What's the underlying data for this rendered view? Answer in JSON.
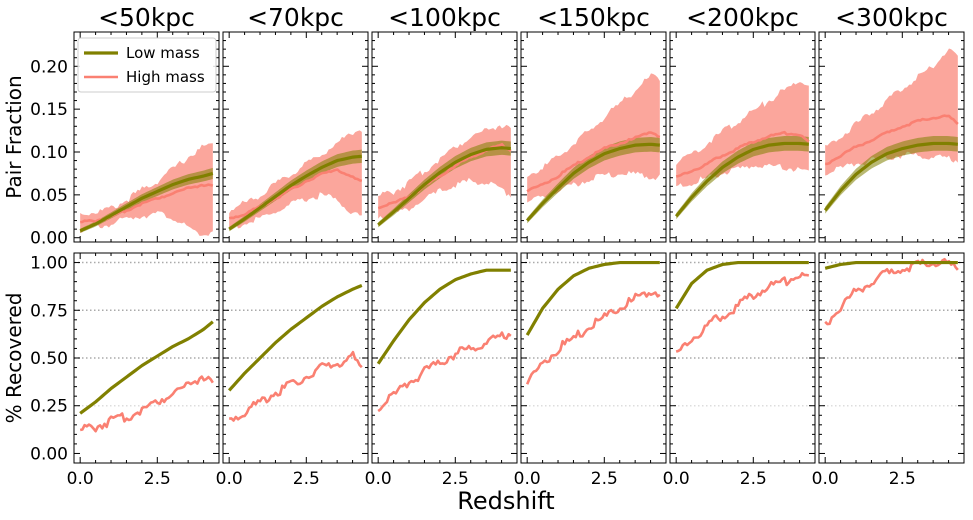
{
  "chart_data": {
    "type": "line",
    "panel_titles": [
      "<50kpc",
      "<70kpc",
      "<100kpc",
      "<150kpc",
      "<200kpc",
      "<300kpc"
    ],
    "xlabel": "Redshift",
    "ylabel_top": "Pair Fraction",
    "ylabel_bottom": "% Recovered",
    "xlim": [
      -0.2,
      4.5
    ],
    "xticks": [
      0.0,
      2.5
    ],
    "xtick_labels": [
      "0.0",
      "2.5"
    ],
    "ylim_top": [
      -0.005,
      0.24
    ],
    "yticks_top": [
      0.0,
      0.05,
      0.1,
      0.15,
      0.2
    ],
    "ytick_labels_top": [
      "0.00",
      "0.05",
      "0.10",
      "0.15",
      "0.20"
    ],
    "ylim_bottom": [
      -0.05,
      1.05
    ],
    "yticks_bottom": [
      0.0,
      0.25,
      0.5,
      0.75,
      1.0
    ],
    "ytick_labels_bottom": [
      "0.00",
      "0.25",
      "0.50",
      "0.75",
      "1.00"
    ],
    "reference_lines_bottom": [
      0.25,
      0.5,
      0.75,
      1.0
    ],
    "legend": {
      "location": "upper-left of first panel",
      "entries": [
        "Low mass",
        "High mass"
      ]
    },
    "colors": {
      "low_mass": "#808000",
      "high_mass": "#fa8072"
    },
    "x": [
      0.0,
      0.5,
      1.0,
      1.5,
      2.0,
      2.5,
      3.0,
      3.5,
      4.0,
      4.3
    ],
    "pair_fraction": [
      {
        "panel": "<50kpc",
        "low_mass": [
          0.008,
          0.016,
          0.026,
          0.036,
          0.046,
          0.054,
          0.062,
          0.068,
          0.072,
          0.075
        ],
        "high_mass": [
          0.018,
          0.02,
          0.024,
          0.032,
          0.04,
          0.046,
          0.052,
          0.058,
          0.062,
          0.06
        ],
        "high_lower": [
          0.01,
          0.012,
          0.016,
          0.022,
          0.026,
          0.028,
          0.024,
          0.01,
          0.003,
          0.008
        ],
        "high_upper": [
          0.028,
          0.03,
          0.034,
          0.044,
          0.056,
          0.066,
          0.08,
          0.094,
          0.106,
          0.108
        ]
      },
      {
        "panel": "<70kpc",
        "low_mass": [
          0.01,
          0.022,
          0.035,
          0.048,
          0.061,
          0.072,
          0.082,
          0.09,
          0.094,
          0.095
        ],
        "high_mass": [
          0.022,
          0.028,
          0.036,
          0.046,
          0.056,
          0.066,
          0.074,
          0.08,
          0.07,
          0.065
        ],
        "high_lower": [
          0.012,
          0.016,
          0.022,
          0.03,
          0.038,
          0.045,
          0.05,
          0.044,
          0.028,
          0.025
        ],
        "high_upper": [
          0.032,
          0.04,
          0.05,
          0.062,
          0.074,
          0.086,
          0.098,
          0.11,
          0.124,
          0.126
        ]
      },
      {
        "panel": "<100kpc",
        "low_mass": [
          0.015,
          0.03,
          0.046,
          0.062,
          0.076,
          0.088,
          0.097,
          0.103,
          0.105,
          0.104
        ],
        "high_mass": [
          0.035,
          0.04,
          0.048,
          0.06,
          0.072,
          0.084,
          0.094,
          0.102,
          0.108,
          0.102
        ],
        "high_lower": [
          0.025,
          0.028,
          0.034,
          0.044,
          0.054,
          0.062,
          0.066,
          0.064,
          0.056,
          0.05
        ],
        "high_upper": [
          0.048,
          0.054,
          0.064,
          0.078,
          0.092,
          0.106,
          0.118,
          0.126,
          0.132,
          0.126
        ]
      },
      {
        "panel": "<150kpc",
        "low_mass": [
          0.02,
          0.04,
          0.058,
          0.075,
          0.088,
          0.098,
          0.104,
          0.108,
          0.109,
          0.108
        ],
        "high_mass": [
          0.055,
          0.062,
          0.072,
          0.084,
          0.094,
          0.104,
          0.11,
          0.116,
          0.124,
          0.118
        ],
        "high_lower": [
          0.042,
          0.046,
          0.054,
          0.062,
          0.068,
          0.072,
          0.074,
          0.074,
          0.072,
          0.07
        ],
        "high_upper": [
          0.072,
          0.082,
          0.094,
          0.11,
          0.124,
          0.14,
          0.156,
          0.172,
          0.188,
          0.186
        ]
      },
      {
        "panel": "<200kpc",
        "low_mass": [
          0.025,
          0.047,
          0.066,
          0.082,
          0.094,
          0.103,
          0.108,
          0.11,
          0.11,
          0.109
        ],
        "high_mass": [
          0.07,
          0.078,
          0.086,
          0.096,
          0.104,
          0.112,
          0.118,
          0.122,
          0.12,
          0.112
        ],
        "high_lower": [
          0.058,
          0.064,
          0.07,
          0.076,
          0.08,
          0.084,
          0.084,
          0.082,
          0.08,
          0.078
        ],
        "high_upper": [
          0.088,
          0.098,
          0.11,
          0.124,
          0.136,
          0.148,
          0.16,
          0.172,
          0.182,
          0.18
        ]
      },
      {
        "panel": "<300kpc",
        "low_mass": [
          0.032,
          0.055,
          0.074,
          0.088,
          0.098,
          0.104,
          0.108,
          0.11,
          0.11,
          0.109
        ],
        "high_mass": [
          0.085,
          0.096,
          0.106,
          0.114,
          0.122,
          0.13,
          0.136,
          0.14,
          0.142,
          0.132
        ],
        "high_lower": [
          0.074,
          0.08,
          0.086,
          0.09,
          0.094,
          0.096,
          0.096,
          0.094,
          0.092,
          0.09
        ],
        "high_upper": [
          0.104,
          0.118,
          0.132,
          0.146,
          0.16,
          0.174,
          0.188,
          0.2,
          0.222,
          0.212
        ]
      }
    ],
    "recovered": [
      {
        "panel": "<50kpc",
        "low_mass": [
          0.21,
          0.27,
          0.34,
          0.4,
          0.46,
          0.51,
          0.56,
          0.6,
          0.65,
          0.69
        ],
        "high_mass": [
          0.12,
          0.14,
          0.17,
          0.19,
          0.23,
          0.27,
          0.32,
          0.36,
          0.41,
          0.36
        ]
      },
      {
        "panel": "<70kpc",
        "low_mass": [
          0.33,
          0.42,
          0.5,
          0.58,
          0.65,
          0.71,
          0.77,
          0.82,
          0.86,
          0.88
        ],
        "high_mass": [
          0.17,
          0.22,
          0.27,
          0.32,
          0.36,
          0.4,
          0.45,
          0.47,
          0.51,
          0.43
        ]
      },
      {
        "panel": "<100kpc",
        "low_mass": [
          0.47,
          0.59,
          0.7,
          0.79,
          0.86,
          0.91,
          0.94,
          0.96,
          0.96,
          0.96
        ],
        "high_mass": [
          0.23,
          0.3,
          0.37,
          0.43,
          0.48,
          0.52,
          0.55,
          0.58,
          0.61,
          0.63
        ]
      },
      {
        "panel": "<150kpc",
        "low_mass": [
          0.62,
          0.76,
          0.86,
          0.93,
          0.97,
          0.99,
          1.0,
          1.0,
          1.0,
          1.0
        ],
        "high_mass": [
          0.38,
          0.47,
          0.55,
          0.6,
          0.66,
          0.71,
          0.76,
          0.81,
          0.85,
          0.84
        ]
      },
      {
        "panel": "<200kpc",
        "low_mass": [
          0.76,
          0.89,
          0.96,
          0.99,
          1.0,
          1.0,
          1.0,
          1.0,
          1.0,
          1.0
        ],
        "high_mass": [
          0.51,
          0.6,
          0.67,
          0.72,
          0.77,
          0.83,
          0.87,
          0.9,
          0.93,
          0.93
        ]
      },
      {
        "panel": "<300kpc",
        "low_mass": [
          0.97,
          0.99,
          1.0,
          1.0,
          1.0,
          1.0,
          1.0,
          1.0,
          1.0,
          1.0
        ],
        "high_mass": [
          0.67,
          0.77,
          0.85,
          0.9,
          0.94,
          0.97,
          0.99,
          1.0,
          1.0,
          0.95
        ]
      }
    ]
  }
}
